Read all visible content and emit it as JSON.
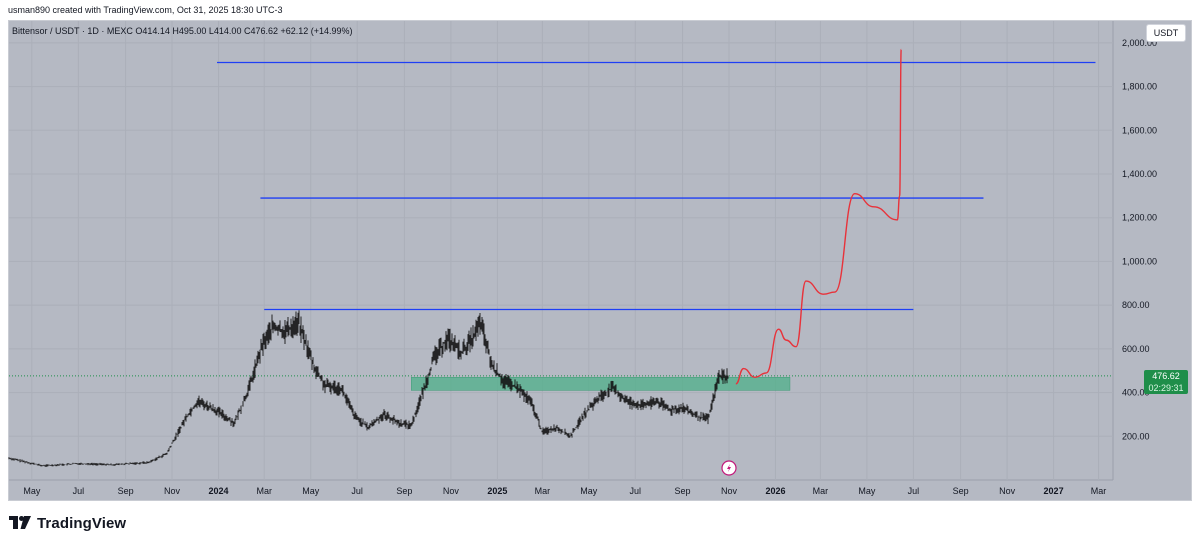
{
  "header": {
    "attribution": "usman890 created with TradingView.com, Oct 31, 2025 18:30 UTC-3"
  },
  "symbol": {
    "line": "Bittensor / USDT · 1D · MEXC  O414.14  H495.00  L414.00  C476.62  +62.12 (+14.99%)"
  },
  "currency_button": "USDT",
  "last_price": {
    "value": "476.62",
    "countdown": "02:29:31"
  },
  "footer": {
    "brand": "TradingView"
  },
  "colors": {
    "plot_bg": "#b5b9c3",
    "candles": "#151515",
    "level_lines": "#1e3ff5",
    "projection": "#e8323a",
    "zone": "#4fb08a",
    "last_price_badge": "#1f8e4a"
  },
  "chart_data": {
    "type": "line",
    "y_axis": {
      "range": [
        0,
        2100
      ],
      "ticks": [
        200,
        400,
        600,
        800,
        1000,
        1200,
        1400,
        1600,
        1800,
        2000
      ],
      "tick_labels": [
        "200.00",
        "400.00",
        "600.00",
        "800.00",
        "1,000.00",
        "1,200.00",
        "1,400.00",
        "1,600.00",
        "1,800.00",
        "2,000.00"
      ],
      "position": "right"
    },
    "x_axis": {
      "range": [
        "2023-04-01",
        "2027-03-20"
      ],
      "ticks": [
        {
          "date": "2023-05-01",
          "label": "May"
        },
        {
          "date": "2023-07-01",
          "label": "Jul"
        },
        {
          "date": "2023-09-01",
          "label": "Sep"
        },
        {
          "date": "2023-11-01",
          "label": "Nov"
        },
        {
          "date": "2024-01-01",
          "label": "2024"
        },
        {
          "date": "2024-03-01",
          "label": "Mar"
        },
        {
          "date": "2024-05-01",
          "label": "May"
        },
        {
          "date": "2024-07-01",
          "label": "Jul"
        },
        {
          "date": "2024-09-01",
          "label": "Sep"
        },
        {
          "date": "2024-11-01",
          "label": "Nov"
        },
        {
          "date": "2025-01-01",
          "label": "2025"
        },
        {
          "date": "2025-03-01",
          "label": "Mar"
        },
        {
          "date": "2025-05-01",
          "label": "May"
        },
        {
          "date": "2025-07-01",
          "label": "Jul"
        },
        {
          "date": "2025-09-01",
          "label": "Sep"
        },
        {
          "date": "2025-11-01",
          "label": "Nov"
        },
        {
          "date": "2026-01-01",
          "label": "2026"
        },
        {
          "date": "2026-03-01",
          "label": "Mar"
        },
        {
          "date": "2026-05-01",
          "label": "May"
        },
        {
          "date": "2026-07-01",
          "label": "Jul"
        },
        {
          "date": "2026-09-01",
          "label": "Sep"
        },
        {
          "date": "2026-11-01",
          "label": "Nov"
        },
        {
          "date": "2027-01-01",
          "label": "2027"
        },
        {
          "date": "2027-03-01",
          "label": "Mar"
        }
      ]
    },
    "price_series": {
      "x": [
        "2023-04-01",
        "2023-05-15",
        "2023-07-01",
        "2023-08-15",
        "2023-10-01",
        "2023-10-25",
        "2023-11-20",
        "2023-12-05",
        "2023-12-28",
        "2024-01-22",
        "2024-02-10",
        "2024-02-28",
        "2024-03-12",
        "2024-03-28",
        "2024-04-15",
        "2024-05-05",
        "2024-05-20",
        "2024-06-10",
        "2024-06-28",
        "2024-07-15",
        "2024-08-05",
        "2024-08-25",
        "2024-09-10",
        "2024-09-25",
        "2024-10-10",
        "2024-10-28",
        "2024-11-15",
        "2024-12-01",
        "2024-12-10",
        "2024-12-25",
        "2025-01-10",
        "2025-01-28",
        "2025-02-15",
        "2025-03-01",
        "2025-03-20",
        "2025-04-07",
        "2025-04-25",
        "2025-05-15",
        "2025-06-01",
        "2025-06-20",
        "2025-07-10",
        "2025-07-30",
        "2025-08-15",
        "2025-09-01",
        "2025-09-20",
        "2025-10-05",
        "2025-10-18",
        "2025-10-31"
      ],
      "close": [
        100,
        65,
        75,
        70,
        80,
        120,
        290,
        360,
        320,
        260,
        420,
        620,
        700,
        680,
        720,
        520,
        430,
        420,
        290,
        240,
        300,
        260,
        250,
        400,
        560,
        650,
        580,
        660,
        720,
        520,
        450,
        420,
        350,
        220,
        240,
        200,
        300,
        380,
        420,
        360,
        340,
        360,
        320,
        330,
        290,
        280,
        470,
        476.62
      ]
    },
    "horizontal_levels": [
      {
        "price": 780,
        "from": "2024-03-01",
        "to": "2026-07-01"
      },
      {
        "price": 1290,
        "from": "2024-02-25",
        "to": "2026-10-01"
      },
      {
        "price": 1910,
        "from": "2023-12-30",
        "to": "2027-02-25"
      }
    ],
    "zone": {
      "from": "2024-09-10",
      "to": "2026-01-20",
      "low": 410,
      "high": 470
    },
    "projection": {
      "x": [
        "2025-11-10",
        "2025-11-20",
        "2025-12-05",
        "2025-12-20",
        "2026-01-05",
        "2026-01-15",
        "2026-01-28",
        "2026-02-10",
        "2026-03-05",
        "2026-03-20",
        "2026-04-15",
        "2026-05-10",
        "2026-06-10",
        "2026-06-13",
        "2026-06-15"
      ],
      "y": [
        440,
        510,
        470,
        490,
        690,
        640,
        610,
        910,
        850,
        860,
        1310,
        1250,
        1190,
        1300,
        1970
      ]
    },
    "last_price_line": 476.62,
    "grid": true,
    "legend": "none"
  }
}
